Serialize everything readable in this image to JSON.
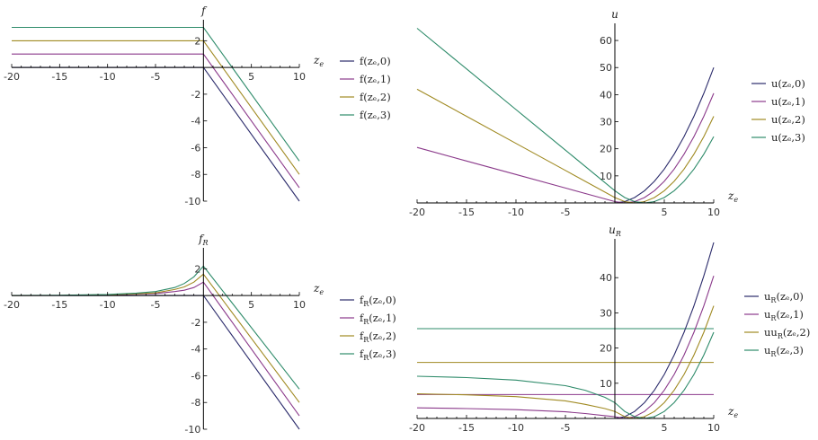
{
  "colors": [
    "#2b2b6b",
    "#8b3a8b",
    "#a08a22",
    "#2e8b6a"
  ],
  "chart_data": [
    {
      "type": "line",
      "ylabel": "f",
      "xlabel": "z_e",
      "xlim": [
        -20,
        10
      ],
      "ylim": [
        -10,
        3.3
      ],
      "xticks": [
        -20,
        -15,
        -10,
        -5,
        5,
        10
      ],
      "yticks": [
        -10,
        -8,
        -6,
        -4,
        -2,
        2
      ],
      "x": [
        -20,
        0,
        10
      ],
      "series": [
        {
          "name": "f(zₑ,0)",
          "values": [
            0,
            0,
            -10
          ]
        },
        {
          "name": "f(zₑ,1)",
          "values": [
            1,
            1,
            -9
          ]
        },
        {
          "name": "f(zₑ,2)",
          "values": [
            2,
            2,
            -8
          ]
        },
        {
          "name": "f(zₑ,3)",
          "values": [
            3,
            3,
            -7
          ]
        }
      ]
    },
    {
      "type": "line",
      "ylabel": "u",
      "xlabel": "z_e",
      "xlim": [
        -20,
        10
      ],
      "ylim": [
        0,
        65
      ],
      "xticks": [
        -20,
        -15,
        -10,
        -5,
        5,
        10
      ],
      "yticks": [
        10,
        20,
        30,
        40,
        50,
        60
      ],
      "x": [
        -20,
        -15,
        -10,
        -5,
        0,
        1,
        2,
        3,
        4,
        5,
        6,
        7,
        8,
        9,
        10
      ],
      "series": [
        {
          "name": "u(zₑ,0)",
          "values": [
            0,
            0,
            0,
            0,
            0,
            0.5,
            2,
            4.5,
            8,
            12.5,
            18,
            24.5,
            32,
            40.5,
            50
          ]
        },
        {
          "name": "u(zₑ,1)",
          "values": [
            20.5,
            15.5,
            10.5,
            5.5,
            0.5,
            0,
            0.5,
            2,
            4.5,
            8,
            12.5,
            18,
            24.5,
            32,
            40.5
          ]
        },
        {
          "name": "u(zₑ,2)",
          "values": [
            42,
            32,
            22,
            12,
            2,
            0.5,
            0,
            0.5,
            2,
            4.5,
            8,
            12.5,
            18,
            24.5,
            32
          ]
        },
        {
          "name": "u(zₑ,3)",
          "values": [
            64.5,
            49.5,
            34.5,
            19.5,
            4.5,
            2,
            0.5,
            0,
            0.5,
            2,
            4.5,
            8,
            12.5,
            18,
            24.5
          ]
        }
      ]
    },
    {
      "type": "line",
      "ylabel": "f_R",
      "xlabel": "z_e",
      "xlim": [
        -20,
        10
      ],
      "ylim": [
        -10,
        3.3
      ],
      "xticks": [
        -20,
        -15,
        -10,
        -5,
        5,
        10
      ],
      "yticks": [
        -10,
        -8,
        -6,
        -4,
        -2,
        2
      ],
      "x": [
        -20,
        -15,
        -10,
        -7,
        -5,
        -3,
        -2,
        -1,
        0,
        10
      ],
      "series": [
        {
          "name": "f_R(zₑ,0)",
          "values": [
            0,
            0,
            0,
            0,
            0,
            0,
            0,
            0,
            0,
            -10
          ]
        },
        {
          "name": "f_R(zₑ,1)",
          "values": [
            0,
            0.01,
            0.05,
            0.1,
            0.15,
            0.3,
            0.4,
            0.6,
            1,
            -9
          ]
        },
        {
          "name": "f_R(zₑ,2)",
          "values": [
            0,
            0.01,
            0.06,
            0.13,
            0.2,
            0.45,
            0.65,
            1.0,
            1.6,
            -8
          ]
        },
        {
          "name": "f_R(zₑ,3)",
          "values": [
            0,
            0.02,
            0.08,
            0.18,
            0.3,
            0.6,
            0.9,
            1.4,
            2.2,
            -7
          ]
        }
      ]
    },
    {
      "type": "line",
      "ylabel": "u_R",
      "xlabel": "z_e",
      "xlim": [
        -20,
        10
      ],
      "ylim": [
        0,
        50
      ],
      "xticks": [
        -20,
        -15,
        -10,
        -5,
        5,
        10
      ],
      "yticks": [
        10,
        20,
        30,
        40
      ],
      "x": [
        -20,
        -15,
        -10,
        -5,
        -3,
        -1,
        0,
        1,
        2,
        3,
        4,
        5,
        6,
        7,
        8,
        9,
        10
      ],
      "series": [
        {
          "name": "u_R(zₑ,0)",
          "values": [
            0,
            0,
            0,
            0,
            0,
            0,
            0,
            0.5,
            2,
            4.5,
            8,
            12.5,
            18,
            24.5,
            32,
            40.5,
            50
          ]
        },
        {
          "name": "u_R(zₑ,1)",
          "values": [
            3,
            2.8,
            2.5,
            1.9,
            1.4,
            0.8,
            0.5,
            0,
            0.5,
            2,
            4.5,
            8,
            12.5,
            18,
            24.5,
            32,
            40.5
          ]
        },
        {
          "name": "uu_R(zₑ,2)",
          "values": [
            7,
            6.7,
            6.2,
            5,
            4,
            2.8,
            2,
            0.5,
            0,
            0.5,
            2,
            4.5,
            8,
            12.5,
            18,
            24.5,
            32
          ]
        },
        {
          "name": "u_R(zₑ,3)",
          "values": [
            12,
            11.6,
            10.9,
            9.3,
            8,
            6,
            4.5,
            2,
            0.5,
            0,
            0.5,
            2,
            4.5,
            8,
            12.5,
            18,
            24.5
          ]
        }
      ],
      "hlines": [
        {
          "y": 6.8,
          "series": 1
        },
        {
          "y": 15.9,
          "series": 2
        },
        {
          "y": 25.5,
          "series": 3
        }
      ]
    }
  ]
}
